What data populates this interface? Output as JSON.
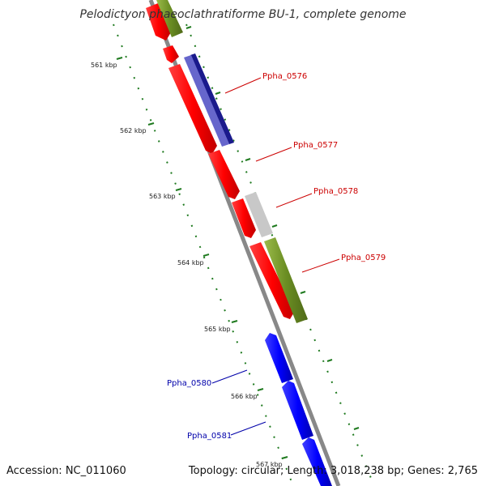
{
  "title": "Pelodictyon phaeoclathratiforme BU-1, complete genome",
  "footer": {
    "accession": "Accession: NC_011060",
    "info": "Topology: circular; Length: 3,018,238 bp; Genes: 2,765"
  },
  "ticks": [
    "561 kbp",
    "562 kbp",
    "563 kbp",
    "564 kbp",
    "565 kbp",
    "566 kbp",
    "567 kbp"
  ],
  "genes": [
    {
      "name": "Ppha_0576",
      "color": "#cc0000"
    },
    {
      "name": "Ppha_0577",
      "color": "#cc0000"
    },
    {
      "name": "Ppha_0578",
      "color": "#cc0000"
    },
    {
      "name": "Ppha_0579",
      "color": "#cc0000"
    },
    {
      "name": "Ppha_0580",
      "color": "#0000aa"
    },
    {
      "name": "Ppha_0581",
      "color": "#0000aa"
    }
  ],
  "colors": {
    "cds_forward": "#ff0000",
    "cds_reverse": "#0000ff",
    "trna": "#6b8e23",
    "olive": "#7a9a2e",
    "navy": "#1a1a8c",
    "slate": "#6666cc",
    "gray": "#c8c8c8",
    "backbone": "#888888",
    "tick": "#1f7a1f"
  }
}
